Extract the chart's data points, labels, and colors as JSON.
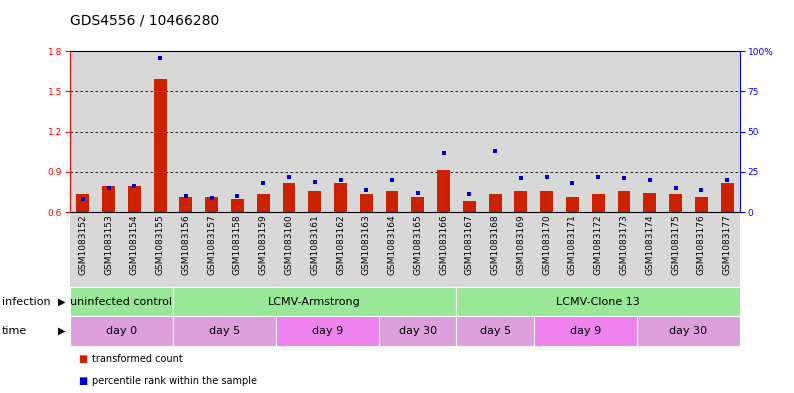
{
  "title": "GDS4556 / 10466280",
  "samples": [
    "GSM1083152",
    "GSM1083153",
    "GSM1083154",
    "GSM1083155",
    "GSM1083156",
    "GSM1083157",
    "GSM1083158",
    "GSM1083159",
    "GSM1083160",
    "GSM1083161",
    "GSM1083162",
    "GSM1083163",
    "GSM1083164",
    "GSM1083165",
    "GSM1083166",
    "GSM1083167",
    "GSM1083168",
    "GSM1083169",
    "GSM1083170",
    "GSM1083171",
    "GSM1083172",
    "GSM1083173",
    "GSM1083174",
    "GSM1083175",
    "GSM1083176",
    "GSM1083177"
  ],
  "red_values": [
    0.735,
    0.795,
    0.795,
    1.595,
    0.715,
    0.715,
    0.695,
    0.735,
    0.815,
    0.755,
    0.815,
    0.735,
    0.755,
    0.715,
    0.915,
    0.685,
    0.735,
    0.755,
    0.755,
    0.715,
    0.735,
    0.755,
    0.745,
    0.735,
    0.715,
    0.815
  ],
  "blue_values": [
    8,
    15,
    16,
    96,
    10,
    9,
    10,
    18,
    22,
    19,
    20,
    14,
    20,
    12,
    37,
    11,
    38,
    21,
    22,
    18,
    22,
    21,
    20,
    15,
    14,
    20
  ],
  "y_min": 0.6,
  "y_max": 1.8,
  "y_ticks": [
    0.6,
    0.9,
    1.2,
    1.5,
    1.8
  ],
  "y2_ticks": [
    0,
    25,
    50,
    75,
    100
  ],
  "y2_labels": [
    "0",
    "25",
    "50",
    "75",
    "100%"
  ],
  "inf_groups": [
    {
      "label": "uninfected control",
      "start": 0,
      "end": 4,
      "color": "#98E898"
    },
    {
      "label": "LCMV-Armstrong",
      "start": 4,
      "end": 15,
      "color": "#98E898"
    },
    {
      "label": "LCMV-Clone 13",
      "start": 15,
      "end": 26,
      "color": "#98E898"
    }
  ],
  "time_groups": [
    {
      "label": "day 0",
      "start": 0,
      "end": 4,
      "color": "#DDA0DD"
    },
    {
      "label": "day 5",
      "start": 4,
      "end": 8,
      "color": "#DDA0DD"
    },
    {
      "label": "day 9",
      "start": 8,
      "end": 12,
      "color": "#EE82EE"
    },
    {
      "label": "day 30",
      "start": 12,
      "end": 15,
      "color": "#DDA0DD"
    },
    {
      "label": "day 5",
      "start": 15,
      "end": 18,
      "color": "#DDA0DD"
    },
    {
      "label": "day 9",
      "start": 18,
      "end": 22,
      "color": "#EE82EE"
    },
    {
      "label": "day 30",
      "start": 22,
      "end": 26,
      "color": "#DDA0DD"
    }
  ],
  "bar_color": "#CC2200",
  "dot_color": "#0000CC",
  "bg_color": "#FFFFFF",
  "col_bg": "#D8D8D8",
  "grid_color": "#000000",
  "title_fontsize": 10,
  "tick_fontsize": 6.5,
  "label_fontsize": 8,
  "annot_fontsize": 8
}
